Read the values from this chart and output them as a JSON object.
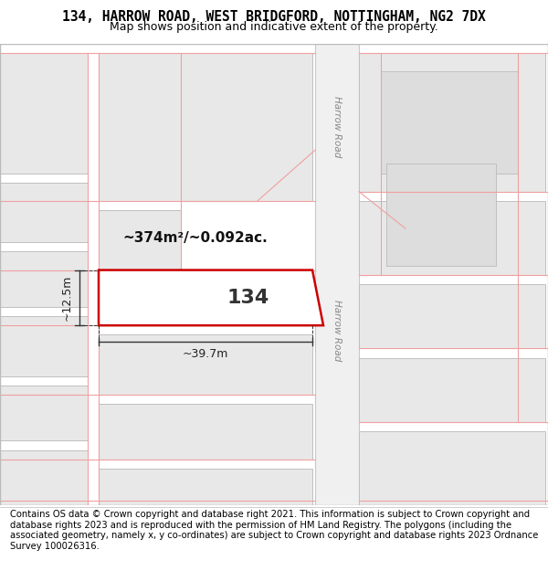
{
  "title": "134, HARROW ROAD, WEST BRIDGFORD, NOTTINGHAM, NG2 7DX",
  "subtitle": "Map shows position and indicative extent of the property.",
  "footer": "Contains OS data © Crown copyright and database right 2021. This information is subject to Crown copyright and database rights 2023 and is reproduced with the permission of HM Land Registry. The polygons (including the associated geometry, namely x, y co-ordinates) are subject to Crown copyright and database rights 2023 Ordnance Survey 100026316.",
  "map_bg": "#ffffff",
  "block_fill": "#e8e8e8",
  "block_edge": "#c0c0c0",
  "road_fill": "#f0f0f0",
  "road_line": "#c8c8c8",
  "lot_line": "#f0a0a0",
  "prop_edge": "#cc0000",
  "prop_fill": "#ffffff",
  "area_text": "~374m²/~0.092ac.",
  "label_134": "134",
  "dim_width": "~39.7m",
  "dim_height": "~12.5m",
  "harrow_road_label": "Harrow Road",
  "title_fontsize": 10.5,
  "subtitle_fontsize": 9,
  "footer_fontsize": 7.2,
  "title_font": "DejaVu Sans",
  "map_border": "#cccccc"
}
